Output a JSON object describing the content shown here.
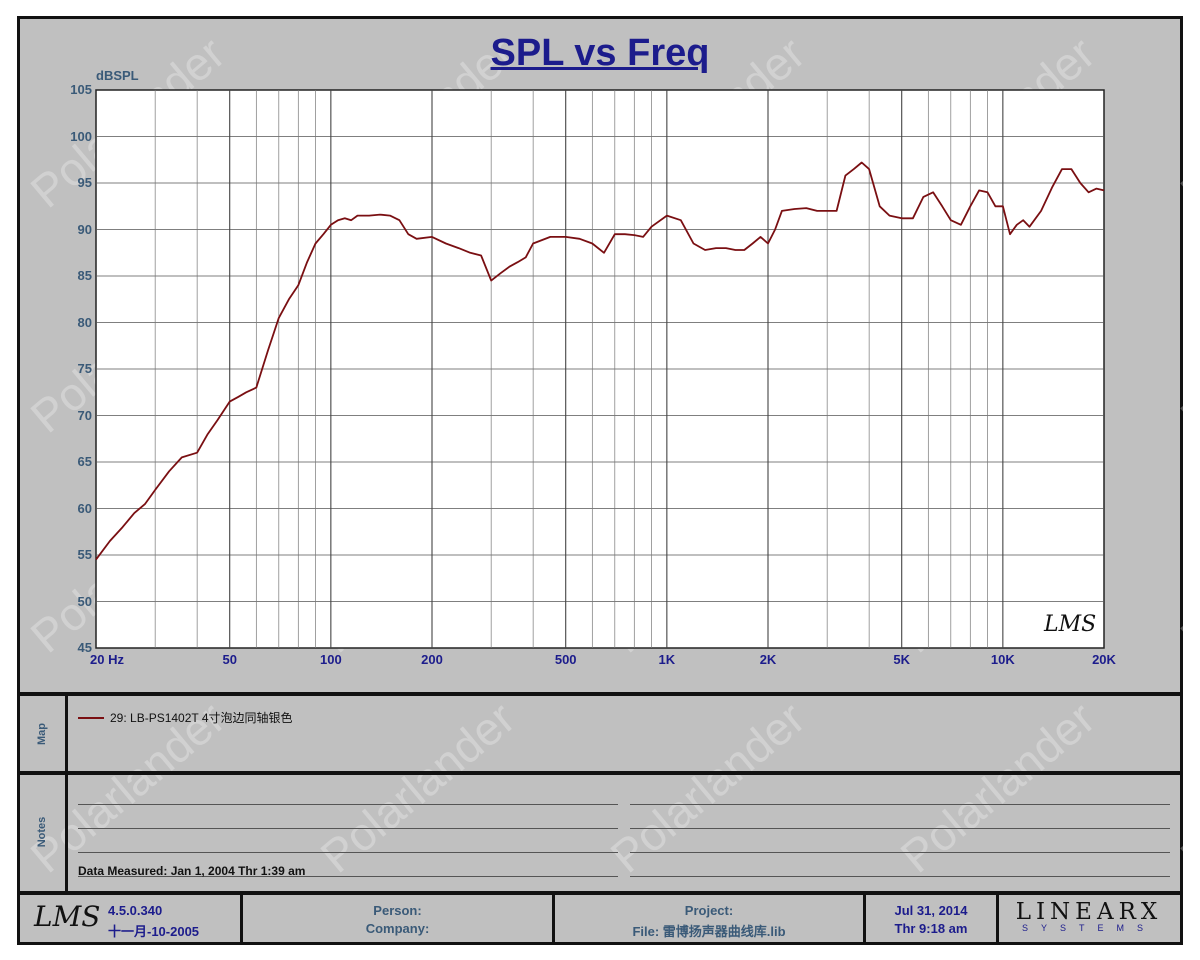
{
  "chart_data": {
    "type": "line",
    "title": "SPL vs Freq",
    "ylabel": "dBSPL",
    "xscale": "log",
    "xlim": [
      20,
      20000
    ],
    "ylim": [
      45,
      105
    ],
    "grid": true,
    "y_ticks": [
      "105",
      "100",
      "95",
      "90",
      "85",
      "80",
      "75",
      "70",
      "65",
      "60",
      "55",
      "50",
      "45"
    ],
    "x_ticks": [
      {
        "value": 20,
        "label": "20  Hz"
      },
      {
        "value": 50,
        "label": "50"
      },
      {
        "value": 100,
        "label": "100"
      },
      {
        "value": 200,
        "label": "200"
      },
      {
        "value": 500,
        "label": "500"
      },
      {
        "value": 1000,
        "label": "1K"
      },
      {
        "value": 2000,
        "label": "2K"
      },
      {
        "value": 5000,
        "label": "5K"
      },
      {
        "value": 10000,
        "label": "10K"
      },
      {
        "value": 20000,
        "label": "20K"
      }
    ],
    "series": [
      {
        "name": "29: LB-PS1402T 4寸泡边同轴银色",
        "color": "#7a0f12",
        "x": [
          20,
          22,
          24,
          26,
          28,
          30,
          33,
          36,
          40,
          43,
          46,
          50,
          53,
          56,
          60,
          65,
          70,
          75,
          80,
          85,
          90,
          95,
          100,
          105,
          110,
          115,
          120,
          130,
          140,
          150,
          160,
          170,
          180,
          200,
          220,
          240,
          260,
          280,
          300,
          320,
          340,
          360,
          380,
          400,
          450,
          500,
          550,
          600,
          650,
          700,
          750,
          800,
          850,
          900,
          1000,
          1100,
          1200,
          1300,
          1400,
          1500,
          1600,
          1700,
          1800,
          1900,
          2000,
          2100,
          2200,
          2400,
          2600,
          2800,
          3000,
          3200,
          3400,
          3600,
          3800,
          4000,
          4300,
          4600,
          5000,
          5400,
          5800,
          6200,
          6600,
          7000,
          7500,
          8000,
          8500,
          9000,
          9500,
          10000,
          10500,
          11000,
          11500,
          12000,
          13000,
          14000,
          15000,
          16000,
          17000,
          18000,
          19000,
          20000
        ],
        "y": [
          54.5,
          56.5,
          58,
          59.5,
          60.5,
          62,
          64,
          65.5,
          66,
          68,
          69.5,
          71.5,
          72,
          72.5,
          73,
          77,
          80.5,
          82.5,
          84,
          86.5,
          88.5,
          89.5,
          90.5,
          91,
          91.2,
          91,
          91.5,
          91.5,
          91.6,
          91.5,
          91,
          89.5,
          89,
          89.2,
          88.5,
          88,
          87.5,
          87.2,
          84.5,
          85.3,
          86,
          86.5,
          87,
          88.5,
          89.2,
          89.2,
          89,
          88.5,
          87.5,
          89.5,
          89.5,
          89.4,
          89.2,
          90.3,
          91.5,
          91,
          88.5,
          87.8,
          88,
          88,
          87.8,
          87.8,
          88.5,
          89.2,
          88.5,
          90,
          92,
          92.2,
          92.3,
          92,
          92,
          92,
          95.8,
          96.5,
          97.2,
          96.5,
          92.5,
          91.5,
          91.2,
          91.2,
          93.5,
          94,
          92.5,
          91,
          90.5,
          92.5,
          94.2,
          94,
          92.5,
          92.5,
          89.5,
          90.5,
          91,
          90.3,
          92,
          94.5,
          96.5,
          96.5,
          95,
          94,
          94.4,
          94.2
        ]
      }
    ]
  },
  "corner_logo": "LMS",
  "panels": {
    "map_label": "Map",
    "notes_label": "Notes"
  },
  "notes": {
    "measured": "Data Measured: Jan  1, 2004  Thr  1:39 am"
  },
  "footer": {
    "logo": "LMS",
    "version": "4.5.0.340",
    "version_date": "十一月-10-2005",
    "person_label": "Person:",
    "company_label": "Company:",
    "project_label": "Project:",
    "file_label": "File: 雷博扬声器曲线库.lib",
    "date": "Jul 31, 2014",
    "time": "Thr  9:18 am",
    "brand": "LINEARX",
    "brand_sub": "SYSTEMS"
  },
  "watermark": "Polarlander",
  "colors": {
    "background": "#c0c0c0",
    "plot": "#ffffff",
    "curve": "#7a0f12",
    "title": "#1c1c8c",
    "axis_text": "#3a5a78"
  }
}
